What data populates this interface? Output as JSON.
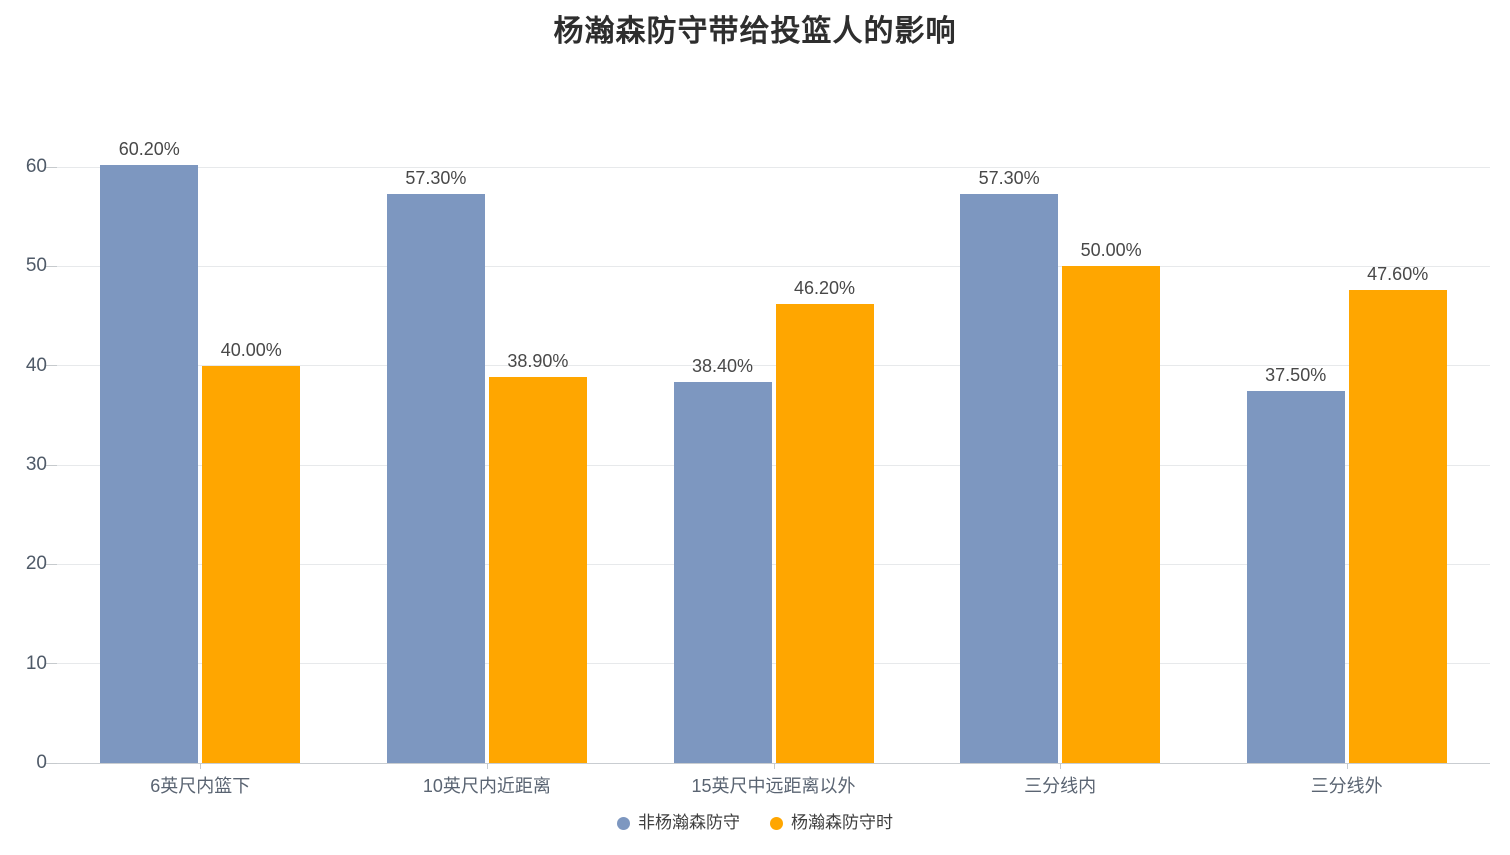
{
  "chart_data": {
    "type": "bar",
    "title": "杨瀚森防守带给投篮人的影响",
    "categories": [
      "6英尺内篮下",
      "10英尺内近距离",
      "15英尺中远距离以外",
      "三分线内",
      "三分线外"
    ],
    "series": [
      {
        "name": "非杨瀚森防守",
        "color": "#7D97C0",
        "values": [
          60.2,
          57.3,
          38.4,
          57.3,
          37.5
        ],
        "labels": [
          "60.20%",
          "57.30%",
          "38.40%",
          "57.30%",
          "37.50%"
        ]
      },
      {
        "name": "杨瀚森防守时",
        "color": "#FFA600",
        "values": [
          40.0,
          38.9,
          46.2,
          50.0,
          47.6
        ],
        "labels": [
          "40.00%",
          "38.90%",
          "46.20%",
          "50.00%",
          "47.60%"
        ]
      }
    ],
    "y_axis": {
      "min": 0,
      "max": 60,
      "interval": 10,
      "tick_labels": [
        "0",
        "10",
        "20",
        "30",
        "40",
        "50",
        "60"
      ]
    },
    "x_axis": {
      "label_position": "bottom"
    },
    "legend": {
      "position": "bottom",
      "items": [
        "非杨瀚森防守",
        "杨瀚森防守时"
      ]
    },
    "grid": true,
    "value_suffix": "%",
    "ylim": [
      0,
      60
    ]
  },
  "colors": {
    "series_blue": "#7D97C0",
    "series_orange": "#FFA600",
    "title_text": "#2e2e2e",
    "axis_text": "#5a6472",
    "value_text": "#484848",
    "gridline": "#e7e9eb"
  }
}
